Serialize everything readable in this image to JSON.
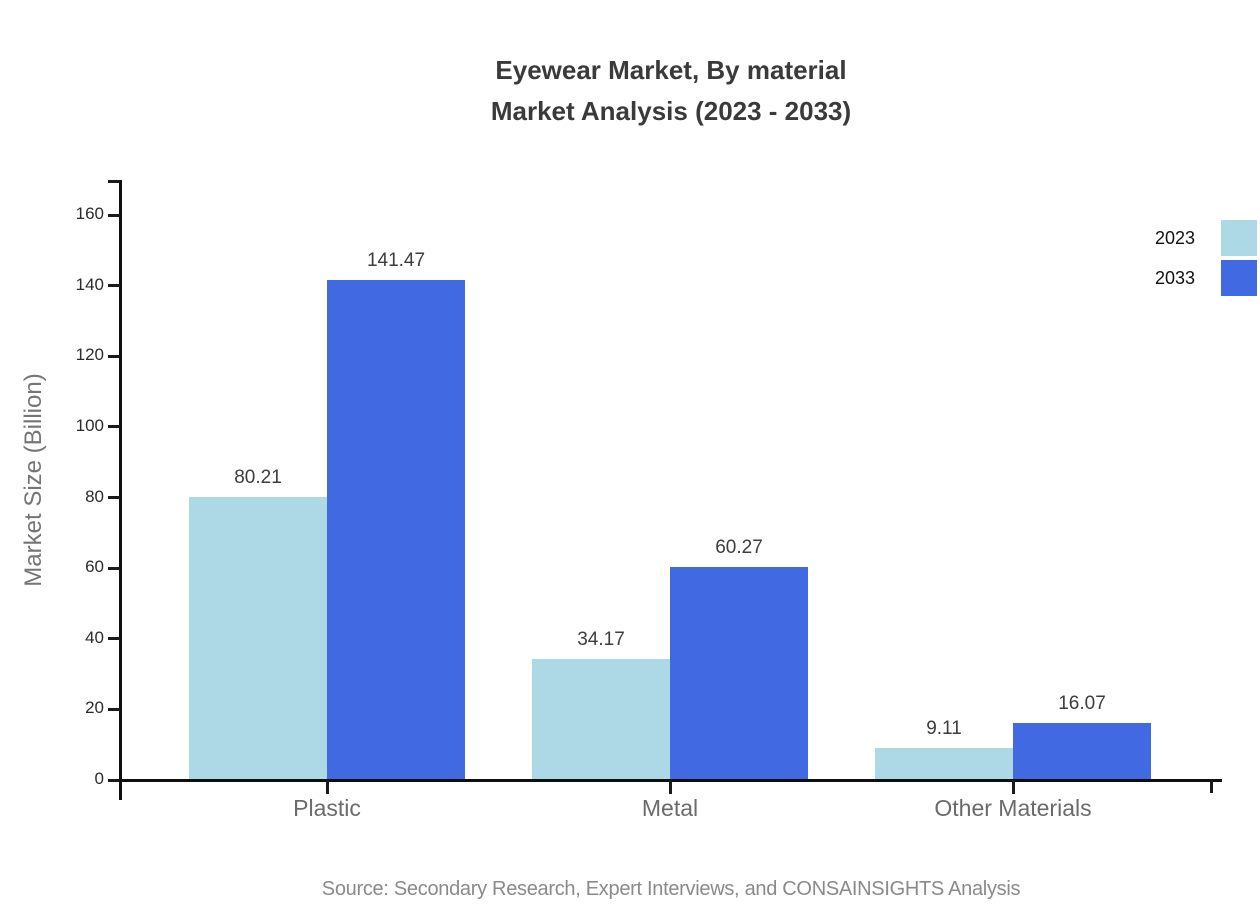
{
  "title": {
    "line1": "Eyewear Market, By material",
    "line2": "Market Analysis (2023 - 2033)"
  },
  "source": "Source: Secondary Research, Expert Interviews, and CONSAINSIGHTS Analysis",
  "chart_data": {
    "type": "bar",
    "title": "Eyewear Market, By material Market Analysis (2023 - 2033)",
    "categories": [
      "Plastic",
      "Metal",
      "Other Materials"
    ],
    "series": [
      {
        "name": "2023",
        "color": "#add8e6",
        "values": [
          80.21,
          34.17,
          9.11
        ]
      },
      {
        "name": "2033",
        "color": "#4169e1",
        "values": [
          141.47,
          60.27,
          16.07
        ]
      }
    ],
    "value_labels": [
      "80.21",
      "141.47",
      "34.17",
      "60.27",
      "9.11",
      "16.07"
    ],
    "xlabel": "",
    "ylabel": "Market Size (Billion)",
    "ylim": [
      0,
      170
    ],
    "yticks": [
      0,
      20,
      40,
      60,
      80,
      100,
      120,
      140,
      160
    ],
    "grid": false,
    "legend_position": "top-right",
    "axis_color": "#0f0f0f",
    "text_colors": {
      "title": "#3a3a3a",
      "tick_labels": "#2b2b2b",
      "category_labels": "#6b6b6b",
      "value_labels": "#3d3d3d",
      "axis_title": "#757575",
      "source": "#8a8a8a"
    }
  }
}
